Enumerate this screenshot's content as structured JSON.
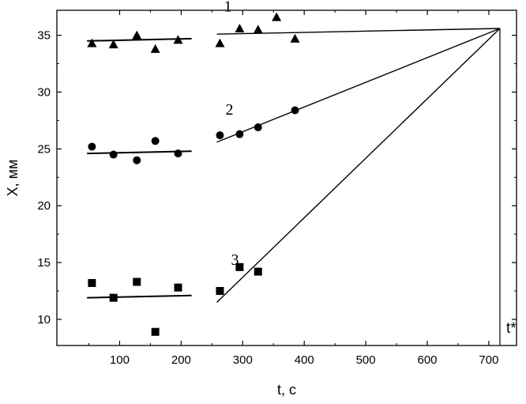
{
  "chart_data": {
    "type": "scatter",
    "xlabel": "t, с",
    "ylabel": "X, мм",
    "xlim": [
      -2,
      745
    ],
    "ylim": [
      7.7,
      37.2
    ],
    "x_ticks": [
      100,
      200,
      300,
      400,
      500,
      600,
      700
    ],
    "y_ticks": [
      10,
      15,
      20,
      25,
      30,
      35
    ],
    "grid": false,
    "annotation": "t*",
    "t_star": 718,
    "series": [
      {
        "name": "1",
        "marker": "triangle",
        "points": [
          [
            55,
            34.3
          ],
          [
            90,
            34.2
          ],
          [
            128,
            35.0
          ],
          [
            158,
            33.8
          ],
          [
            195,
            34.6
          ],
          [
            263,
            34.3
          ],
          [
            295,
            35.6
          ],
          [
            325,
            35.5
          ],
          [
            355,
            36.6
          ],
          [
            385,
            34.7
          ]
        ],
        "fit_left": [
          [
            47,
            34.5
          ],
          [
            217,
            34.7
          ]
        ],
        "fit_right": [
          [
            258,
            35.1
          ],
          [
            718,
            35.6
          ]
        ]
      },
      {
        "name": "2",
        "marker": "circle",
        "points": [
          [
            55,
            25.2
          ],
          [
            90,
            24.5
          ],
          [
            128,
            24.0
          ],
          [
            158,
            25.7
          ],
          [
            195,
            24.6
          ],
          [
            263,
            26.2
          ],
          [
            295,
            26.3
          ],
          [
            325,
            26.9
          ],
          [
            385,
            28.4
          ]
        ],
        "fit_left": [
          [
            47,
            24.6
          ],
          [
            217,
            24.8
          ]
        ],
        "fit_right": [
          [
            258,
            25.6
          ],
          [
            718,
            35.6
          ]
        ]
      },
      {
        "name": "3",
        "marker": "square",
        "points": [
          [
            55,
            13.2
          ],
          [
            90,
            11.9
          ],
          [
            128,
            13.3
          ],
          [
            158,
            8.9
          ],
          [
            195,
            12.8
          ],
          [
            263,
            12.5
          ],
          [
            295,
            14.6
          ],
          [
            325,
            14.2
          ]
        ],
        "fit_left": [
          [
            47,
            11.9
          ],
          [
            217,
            12.1
          ]
        ],
        "fit_right": [
          [
            258,
            11.5
          ],
          [
            718,
            35.6
          ]
        ]
      }
    ]
  }
}
